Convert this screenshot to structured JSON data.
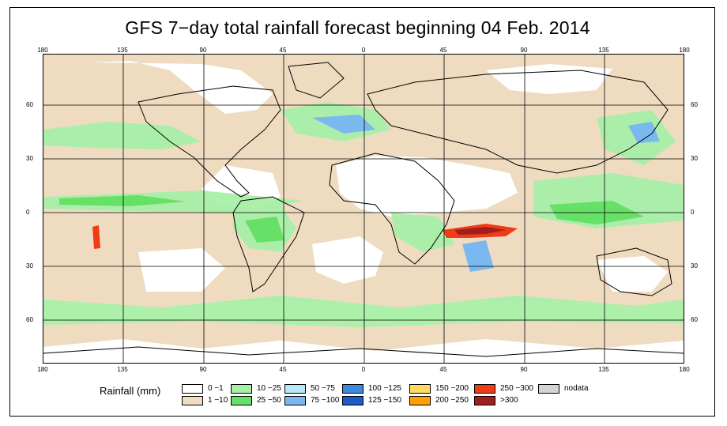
{
  "title": "GFS 7−day total rainfall forecast beginning 04 Feb. 2014",
  "longitude_ticks": [
    "180",
    "135",
    "90",
    "45",
    "0",
    "45",
    "90",
    "135",
    "180"
  ],
  "latitude_ticks": [
    "60",
    "30",
    "0",
    "30",
    "60"
  ],
  "legend": {
    "title": "Rainfall (mm)",
    "items": [
      {
        "label": "0 −1",
        "color": "#ffffff"
      },
      {
        "label": "1 −10",
        "color": "#efdcc0"
      },
      {
        "label": "10 −25",
        "color": "#a8f0a8"
      },
      {
        "label": "25 −50",
        "color": "#66e066"
      },
      {
        "label": "50 −75",
        "color": "#b8e8f8"
      },
      {
        "label": "75 −100",
        "color": "#7ab8f0"
      },
      {
        "label": "100 −125",
        "color": "#3d88e0"
      },
      {
        "label": "125 −150",
        "color": "#1c5cc8"
      },
      {
        "label": "150 −200",
        "color": "#ffdc60"
      },
      {
        "label": "200 −250",
        "color": "#ffa000"
      },
      {
        "label": "250 −300",
        "color": "#f03c14"
      },
      {
        "label": ">300",
        "color": "#a01e1e"
      },
      {
        "label": "nodata",
        "color": "#d4d4d4"
      }
    ]
  }
}
